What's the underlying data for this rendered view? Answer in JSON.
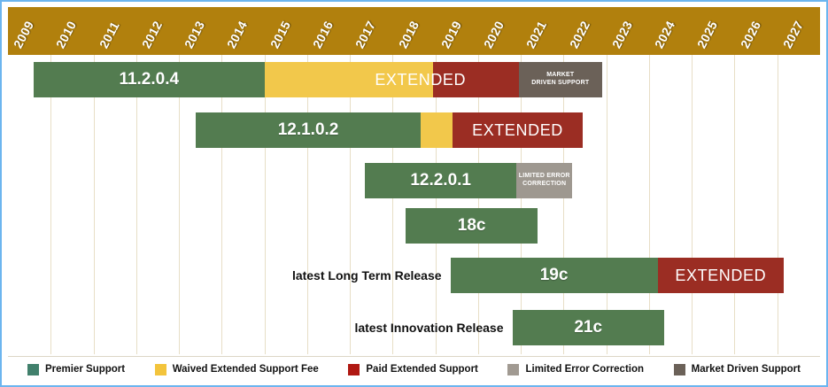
{
  "frame": {
    "border_color": "#6CB5EF"
  },
  "chart_data": {
    "type": "gantt",
    "x_axis": {
      "min": 2009,
      "max": 2028,
      "tick_labels": [
        "2009",
        "2010",
        "2011",
        "2012",
        "2013",
        "2014",
        "2015",
        "2016",
        "2017",
        "2018",
        "2019",
        "2020",
        "2021",
        "2022",
        "2023",
        "2024",
        "2025",
        "2026",
        "2027"
      ]
    },
    "grid": true,
    "legend_position": "bottom",
    "colors": {
      "header_band": "#B1800D",
      "grid_line": "#E7DEC6",
      "premier": "#537C50",
      "waived": "#F2C84B",
      "paid": "#9B2D23",
      "limited": "#9E9890",
      "market": "#6B6158"
    },
    "rows": [
      {
        "name": "11.2.0.4",
        "prefix_label": "",
        "segments": [
          {
            "type": "premier",
            "start": 2009.6,
            "end": 2015.0,
            "label": "11.2.0.4",
            "label_style": "version"
          },
          {
            "type": "waived",
            "start": 2015.0,
            "end": 2018.95
          },
          {
            "type": "paid",
            "start": 2018.95,
            "end": 2020.95
          },
          {
            "type": "market",
            "start": 2020.95,
            "end": 2022.9,
            "label": "MARKET\nDRIVEN SUPPORT",
            "label_style": "small"
          }
        ],
        "overlay": {
          "label": "EXTENDED",
          "start": 2016.95,
          "end": 2020.35
        }
      },
      {
        "name": "12.1.0.2",
        "prefix_label": "",
        "segments": [
          {
            "type": "premier",
            "start": 2013.4,
            "end": 2018.65,
            "label": "12.1.0.2",
            "label_style": "version"
          },
          {
            "type": "waived",
            "start": 2018.65,
            "end": 2019.4
          },
          {
            "type": "paid",
            "start": 2019.4,
            "end": 2022.45,
            "label": "EXTENDED",
            "label_style": "extended"
          }
        ]
      },
      {
        "name": "12.2.0.1",
        "prefix_label": "",
        "segments": [
          {
            "type": "premier",
            "start": 2017.35,
            "end": 2020.9,
            "label": "12.2.0.1",
            "label_style": "version"
          },
          {
            "type": "limited",
            "start": 2020.9,
            "end": 2022.2,
            "label": "LIMITED ERROR\nCORRECTION",
            "label_style": "small"
          }
        ]
      },
      {
        "name": "18c",
        "prefix_label": "",
        "segments": [
          {
            "type": "premier",
            "start": 2018.3,
            "end": 2021.4,
            "label": "18c",
            "label_style": "version"
          }
        ]
      },
      {
        "name": "19c",
        "prefix_label": "latest Long Term Release",
        "segments": [
          {
            "type": "premier",
            "start": 2019.35,
            "end": 2024.2,
            "label": "19c",
            "label_style": "version"
          },
          {
            "type": "paid",
            "start": 2024.2,
            "end": 2027.15,
            "label": "EXTENDED",
            "label_style": "extended"
          }
        ]
      },
      {
        "name": "21c",
        "prefix_label": "latest Innovation Release",
        "segments": [
          {
            "type": "premier",
            "start": 2020.8,
            "end": 2024.35,
            "label": "21c",
            "label_style": "version"
          }
        ]
      }
    ],
    "legend": [
      {
        "label": "Premier Support",
        "color": "#41806C"
      },
      {
        "label": "Waived Extended Support Fee",
        "color": "#F3C43C"
      },
      {
        "label": "Paid Extended Support",
        "color": "#B01812"
      },
      {
        "label": "Limited Error Correction",
        "color": "#A19A92"
      },
      {
        "label": "Market Driven Support",
        "color": "#6B6158"
      }
    ]
  }
}
